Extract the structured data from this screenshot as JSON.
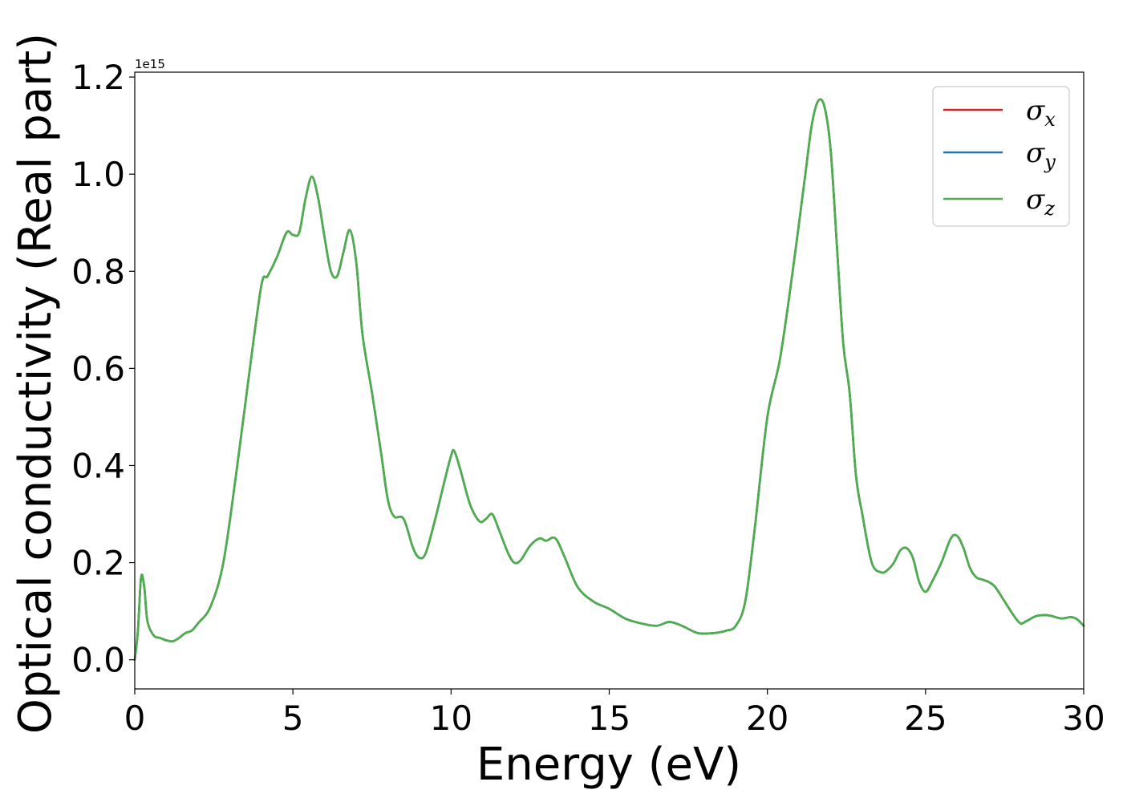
{
  "chart_data": {
    "type": "line",
    "xlabel": "Energy (eV)",
    "ylabel": "Optical conductivity (Real part)",
    "y_offset_label": "1e15",
    "xlim": [
      0,
      30
    ],
    "ylim": [
      -0.06,
      1.21
    ],
    "x_ticks": [
      0,
      5,
      10,
      15,
      20,
      25,
      30
    ],
    "x_tick_labels": [
      "0",
      "5",
      "10",
      "15",
      "20",
      "25",
      "30"
    ],
    "y_ticks": [
      0.0,
      0.2,
      0.4,
      0.6,
      0.8,
      1.0,
      1.2
    ],
    "y_tick_labels": [
      "0.0",
      "0.2",
      "0.4",
      "0.6",
      "0.8",
      "1.0",
      "1.2"
    ],
    "grid": false,
    "legend_position": "top-right",
    "series": [
      {
        "name": "σx",
        "symbol": "σ",
        "subscript": "x",
        "color": "#d62728"
      },
      {
        "name": "σy",
        "symbol": "σ",
        "subscript": "y",
        "color": "#1f77b4"
      },
      {
        "name": "σz",
        "symbol": "σ",
        "subscript": "z",
        "color": "#4daf4a"
      }
    ],
    "x": [
      0.0,
      0.1,
      0.2,
      0.3,
      0.4,
      0.6,
      0.8,
      1.0,
      1.2,
      1.4,
      1.6,
      1.8,
      2.0,
      2.4,
      2.8,
      3.2,
      3.6,
      4.0,
      4.2,
      4.5,
      4.8,
      5.0,
      5.2,
      5.4,
      5.6,
      5.8,
      6.0,
      6.2,
      6.4,
      6.6,
      6.8,
      7.0,
      7.2,
      7.5,
      7.8,
      8.0,
      8.2,
      8.5,
      8.8,
      9.0,
      9.2,
      9.5,
      9.8,
      10.0,
      10.1,
      10.3,
      10.6,
      10.9,
      11.1,
      11.3,
      11.5,
      11.8,
      12.0,
      12.2,
      12.5,
      12.8,
      13.0,
      13.3,
      13.6,
      14.0,
      14.5,
      15.0,
      15.5,
      16.0,
      16.5,
      16.9,
      17.3,
      17.8,
      18.3,
      18.7,
      19.0,
      19.3,
      19.6,
      20.0,
      20.4,
      20.8,
      21.2,
      21.4,
      21.6,
      21.8,
      22.0,
      22.2,
      22.4,
      22.6,
      22.8,
      23.0,
      23.3,
      23.6,
      23.8,
      24.0,
      24.2,
      24.4,
      24.6,
      24.8,
      25.0,
      25.2,
      25.5,
      25.8,
      26.0,
      26.2,
      26.4,
      26.6,
      26.8,
      27.0,
      27.2,
      27.5,
      27.8,
      28.0,
      28.2,
      28.5,
      28.8,
      29.0,
      29.3,
      29.6,
      29.8,
      30.0
    ],
    "y": [
      0.0,
      0.06,
      0.17,
      0.15,
      0.08,
      0.05,
      0.045,
      0.04,
      0.038,
      0.045,
      0.055,
      0.06,
      0.075,
      0.11,
      0.2,
      0.38,
      0.58,
      0.77,
      0.79,
      0.83,
      0.88,
      0.875,
      0.88,
      0.95,
      0.995,
      0.95,
      0.87,
      0.8,
      0.79,
      0.84,
      0.885,
      0.82,
      0.67,
      0.55,
      0.42,
      0.33,
      0.295,
      0.29,
      0.23,
      0.21,
      0.22,
      0.29,
      0.37,
      0.42,
      0.43,
      0.39,
      0.32,
      0.285,
      0.29,
      0.3,
      0.27,
      0.22,
      0.2,
      0.205,
      0.235,
      0.25,
      0.245,
      0.25,
      0.21,
      0.15,
      0.12,
      0.105,
      0.085,
      0.075,
      0.07,
      0.078,
      0.07,
      0.055,
      0.055,
      0.06,
      0.07,
      0.12,
      0.27,
      0.5,
      0.62,
      0.8,
      1.0,
      1.1,
      1.15,
      1.14,
      1.05,
      0.85,
      0.65,
      0.55,
      0.38,
      0.3,
      0.2,
      0.18,
      0.185,
      0.2,
      0.225,
      0.23,
      0.21,
      0.16,
      0.14,
      0.16,
      0.2,
      0.25,
      0.255,
      0.23,
      0.19,
      0.17,
      0.165,
      0.16,
      0.15,
      0.12,
      0.09,
      0.075,
      0.08,
      0.09,
      0.092,
      0.09,
      0.085,
      0.088,
      0.083,
      0.07
    ]
  }
}
